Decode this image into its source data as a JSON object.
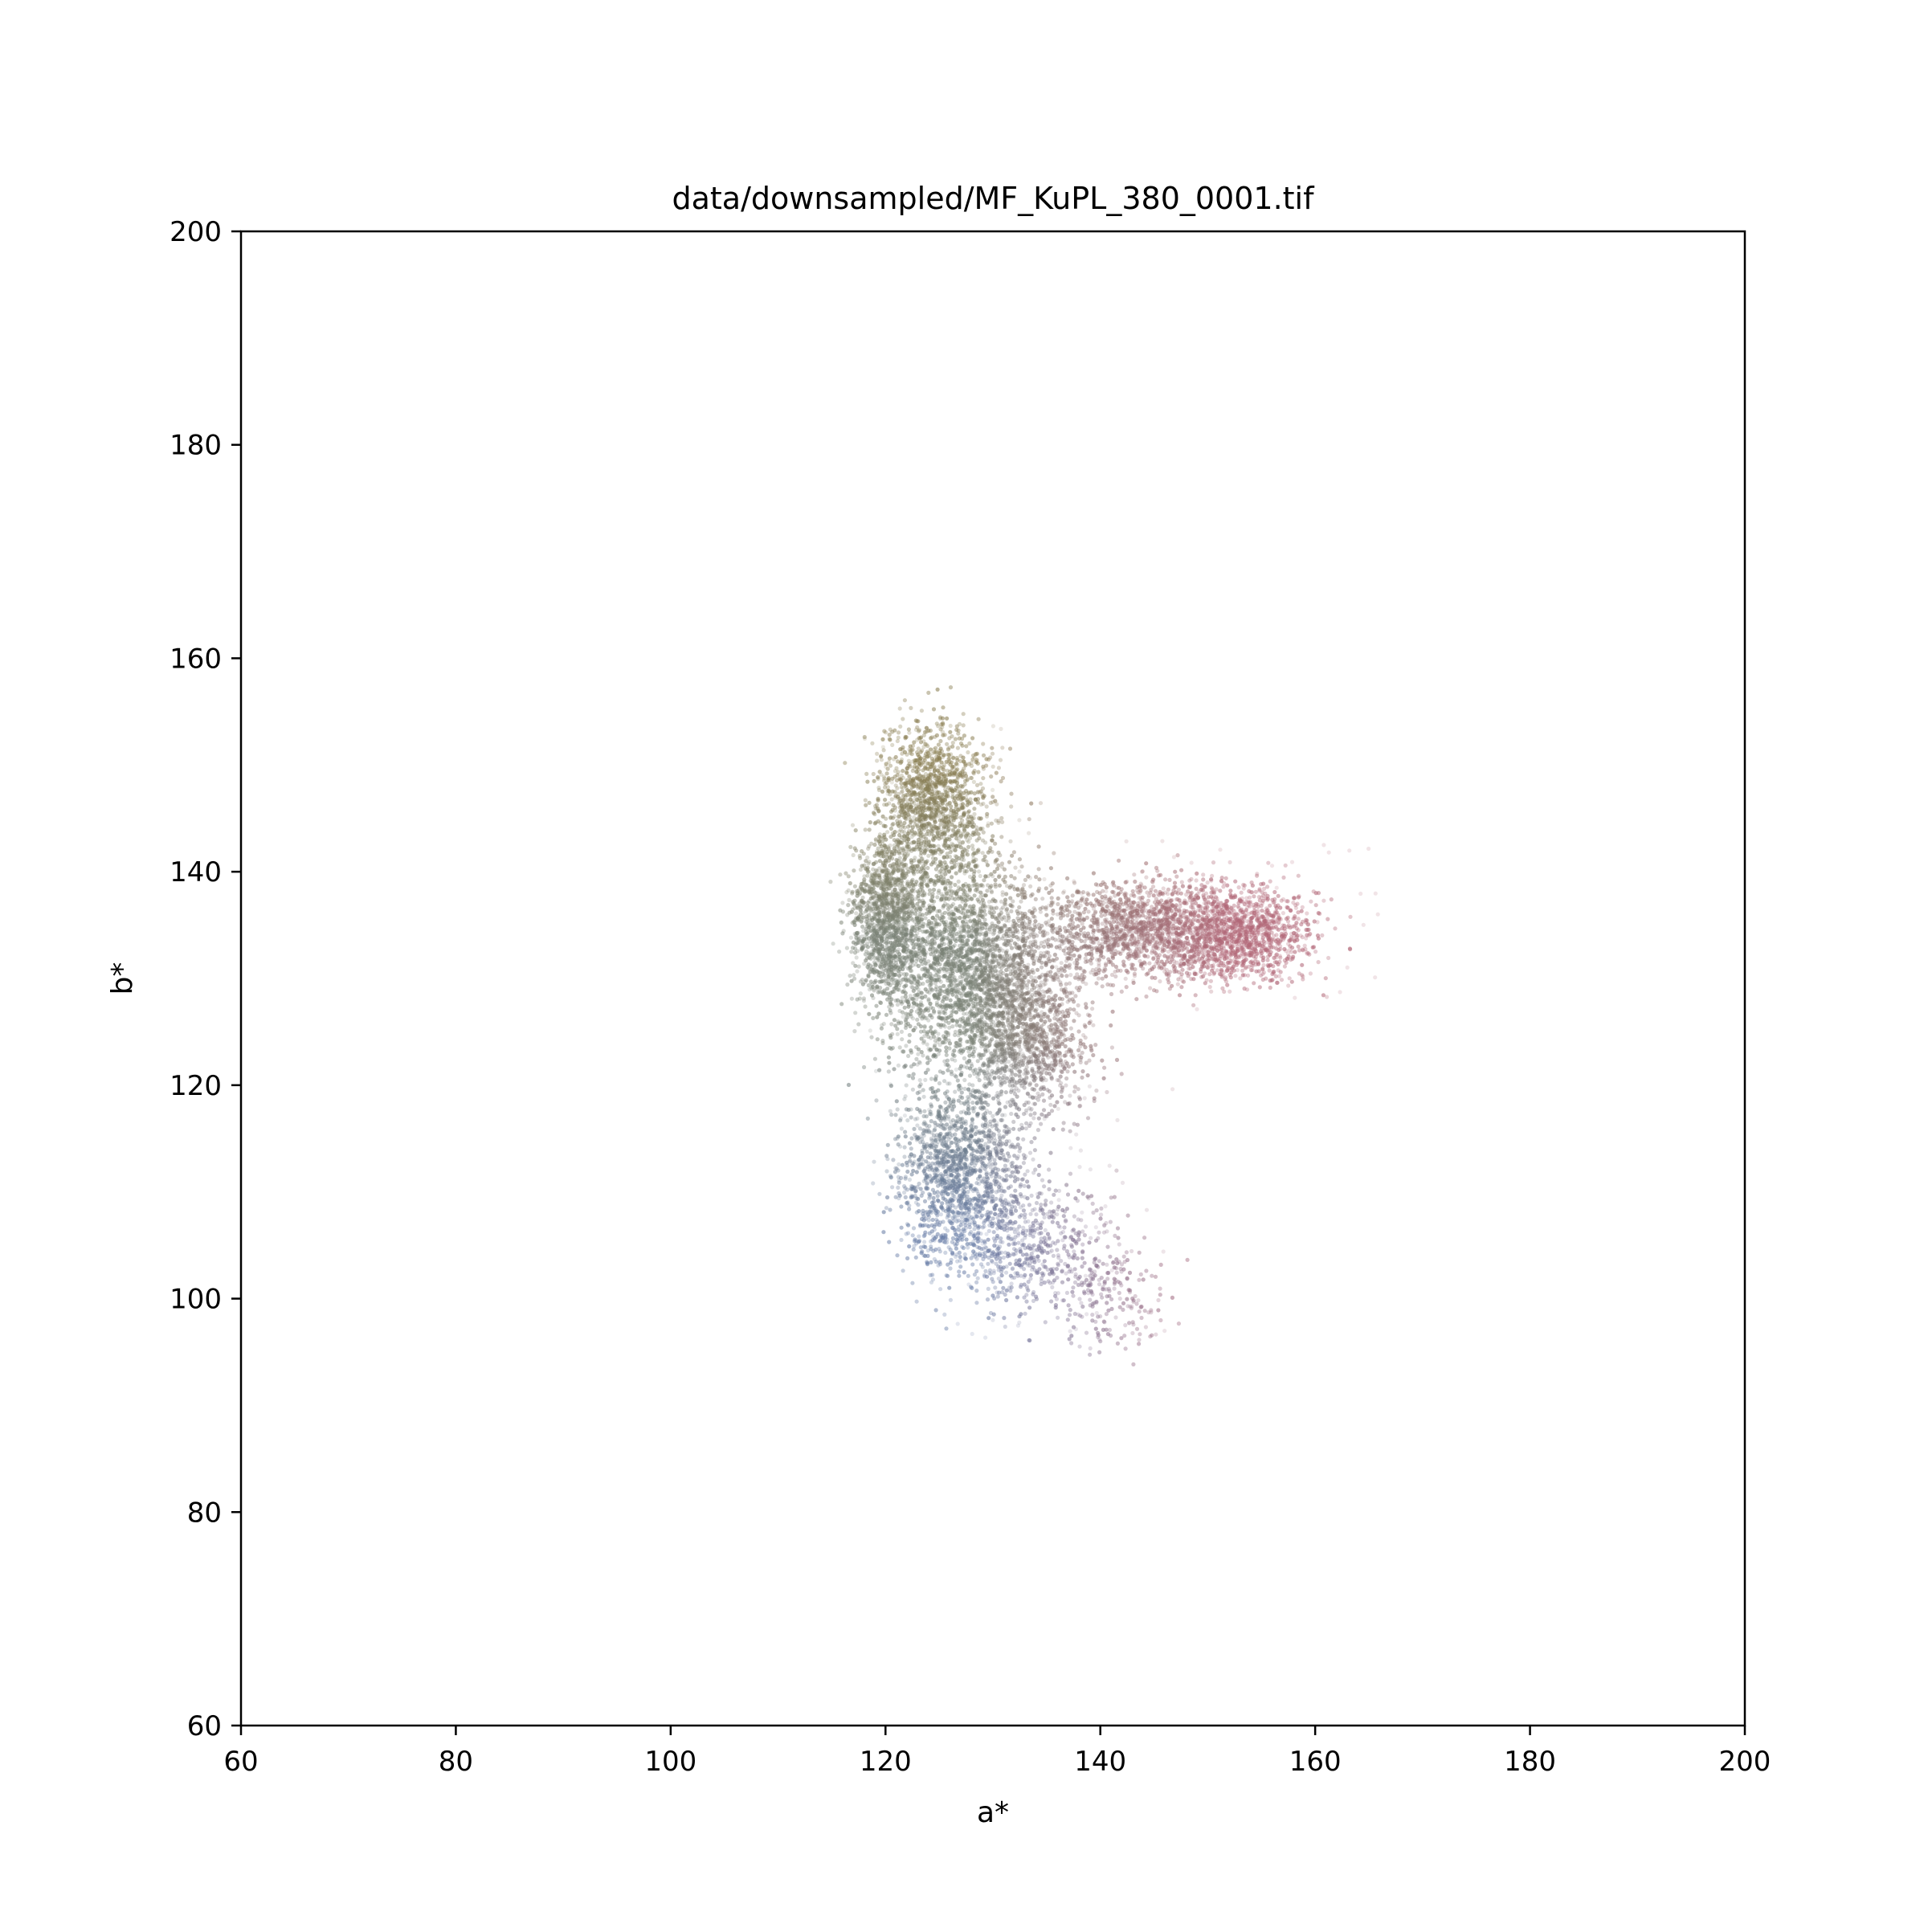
{
  "chart_data": {
    "type": "scatter",
    "title": "data/downsampled/MF_KuPL_380_0001.tif",
    "xlabel": "a*",
    "ylabel": "b*",
    "xlim": [
      60,
      200
    ],
    "ylim": [
      60,
      200
    ],
    "x_ticks": [
      "60",
      "80",
      "100",
      "120",
      "140",
      "160",
      "180",
      "200"
    ],
    "y_ticks": [
      "60",
      "80",
      "100",
      "120",
      "140",
      "160",
      "180",
      "200"
    ],
    "grid": false,
    "legend": "none",
    "point_color": "Lab color of each pixel (olive at top, blue at bottom, red at right)",
    "cloud_regions": [
      {
        "name": "upper-lobe",
        "a_range": [
          121,
          131
        ],
        "b_range": [
          140,
          156
        ],
        "color": "#8a7c55"
      },
      {
        "name": "left-block",
        "a_range": [
          117,
          123
        ],
        "b_range": [
          128,
          144
        ],
        "color": "#7a8466"
      },
      {
        "name": "central-body",
        "a_range": [
          119,
          138
        ],
        "b_range": [
          118,
          140
        ],
        "color": "#7c8478"
      },
      {
        "name": "right-arm",
        "a_range": [
          138,
          166
        ],
        "b_range": [
          127,
          143
        ],
        "color": "#ad6e7c"
      },
      {
        "name": "lower-tail",
        "a_range": [
          122,
          147
        ],
        "b_range": [
          95,
          120
        ],
        "color": "#6b7fa2"
      }
    ]
  }
}
